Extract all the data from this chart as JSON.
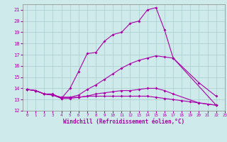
{
  "xlabel": "Windchill (Refroidissement éolien,°C)",
  "xlim": [
    -0.5,
    23
  ],
  "ylim": [
    12,
    21.5
  ],
  "yticks": [
    12,
    13,
    14,
    15,
    16,
    17,
    18,
    19,
    20,
    21
  ],
  "xticks": [
    0,
    1,
    2,
    3,
    4,
    5,
    6,
    7,
    8,
    9,
    10,
    11,
    12,
    13,
    14,
    15,
    16,
    17,
    18,
    19,
    20,
    21,
    22,
    23
  ],
  "bg_color": "#ceeaea",
  "line_color": "#aa00aa",
  "grid_color": "#aacccc",
  "lines": [
    {
      "x": [
        0,
        1,
        2,
        3,
        4,
        5,
        6,
        7,
        8,
        9,
        10,
        11,
        12,
        13,
        14,
        15,
        16,
        17,
        22
      ],
      "y": [
        13.9,
        13.8,
        13.5,
        13.5,
        13.1,
        14.0,
        15.5,
        17.1,
        17.2,
        18.2,
        18.8,
        19.0,
        19.8,
        20.0,
        21.0,
        21.2,
        19.2,
        16.7,
        12.5
      ]
    },
    {
      "x": [
        0,
        1,
        2,
        3,
        4,
        5,
        6,
        7,
        8,
        9,
        10,
        11,
        12,
        13,
        14,
        15,
        16,
        17,
        20,
        22
      ],
      "y": [
        13.9,
        13.8,
        13.5,
        13.4,
        13.2,
        13.2,
        13.4,
        13.9,
        14.3,
        14.8,
        15.3,
        15.8,
        16.2,
        16.5,
        16.7,
        16.9,
        16.8,
        16.7,
        14.5,
        13.3
      ]
    },
    {
      "x": [
        0,
        1,
        2,
        3,
        4,
        5,
        6,
        7,
        8,
        9,
        10,
        11,
        12,
        13,
        14,
        15,
        16,
        17,
        20,
        22
      ],
      "y": [
        13.9,
        13.8,
        13.5,
        13.4,
        13.1,
        13.1,
        13.2,
        13.3,
        13.5,
        13.6,
        13.7,
        13.8,
        13.8,
        13.9,
        14.0,
        14.0,
        13.8,
        13.5,
        12.7,
        12.5
      ]
    },
    {
      "x": [
        0,
        1,
        2,
        3,
        4,
        5,
        6,
        7,
        8,
        9,
        10,
        11,
        12,
        13,
        14,
        15,
        16,
        17,
        18,
        19,
        20,
        21,
        22
      ],
      "y": [
        13.9,
        13.8,
        13.5,
        13.4,
        13.2,
        13.2,
        13.2,
        13.3,
        13.3,
        13.3,
        13.3,
        13.3,
        13.3,
        13.3,
        13.3,
        13.2,
        13.1,
        13.0,
        12.9,
        12.8,
        12.7,
        12.6,
        12.5
      ]
    }
  ]
}
